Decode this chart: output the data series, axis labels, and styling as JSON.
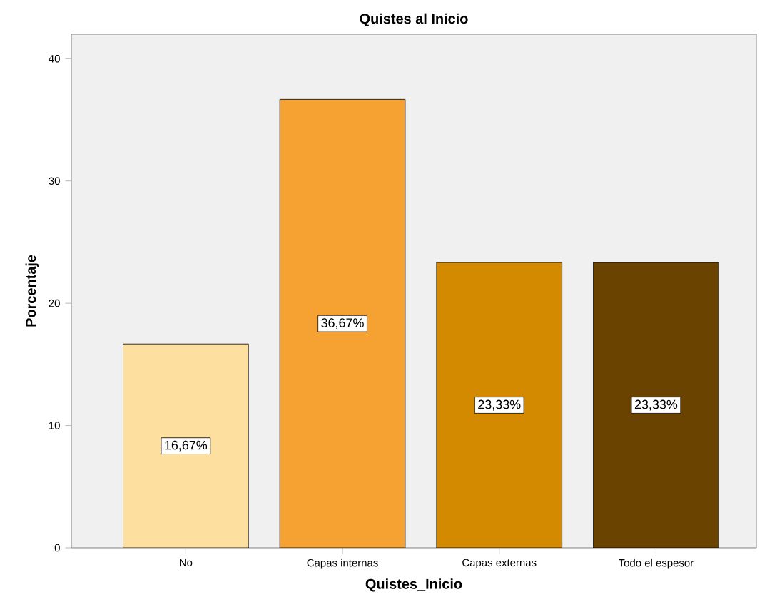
{
  "chart_data": {
    "type": "bar",
    "title": "Quistes al Inicio",
    "xlabel": "Quistes_Inicio",
    "ylabel": "Porcentaje",
    "categories": [
      "No",
      "Capas internas",
      "Capas externas",
      "Todo el espesor"
    ],
    "values": [
      16.67,
      36.67,
      23.33,
      23.33
    ],
    "value_labels": [
      "16,67%",
      "36,67%",
      "23,33%",
      "23,33%"
    ],
    "colors": [
      "#fddf9f",
      "#f5a233",
      "#d38a00",
      "#6a4300"
    ],
    "ylim": [
      0,
      42
    ],
    "yticks": [
      0,
      10,
      20,
      30,
      40
    ],
    "grid": false
  }
}
